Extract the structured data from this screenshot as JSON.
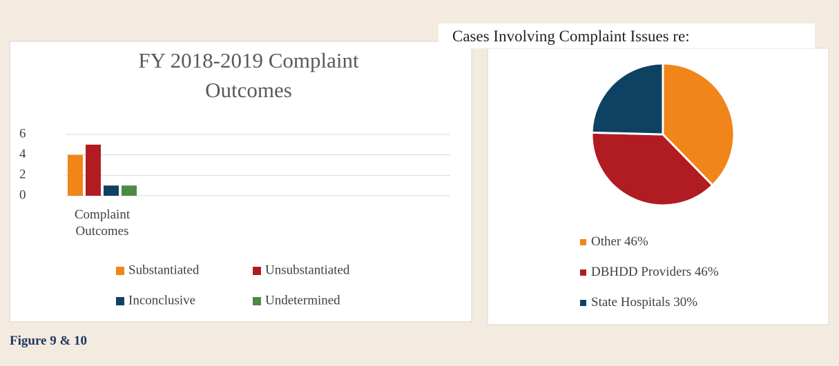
{
  "chart_data": [
    {
      "type": "bar",
      "title": "FY 2018-2019 Complaint Outcomes",
      "categories": [
        "Complaint Outcomes"
      ],
      "series": [
        {
          "name": "Substantiated",
          "color": "#f0851a",
          "values": [
            4
          ]
        },
        {
          "name": "Unsubstantiated",
          "color": "#b01c22",
          "values": [
            5
          ]
        },
        {
          "name": "Inconclusive",
          "color": "#0e4263",
          "values": [
            1
          ]
        },
        {
          "name": "Undetermined",
          "color": "#4e8a43",
          "values": [
            1
          ]
        }
      ],
      "ylim": [
        0,
        6
      ],
      "yticks": [
        0,
        2,
        4,
        6
      ],
      "grid": true
    },
    {
      "type": "pie",
      "title": "Cases Involving Complaint Issues re:",
      "labels": [
        "Other",
        "DBHDD Providers",
        "State Hospitals"
      ],
      "values": [
        46,
        46,
        30
      ],
      "value_labels": [
        "46%",
        "46%",
        "30%"
      ],
      "colors": [
        "#f0851a",
        "#b01c22",
        "#0e4263"
      ]
    }
  ],
  "caption": "Figure 9 & 10"
}
